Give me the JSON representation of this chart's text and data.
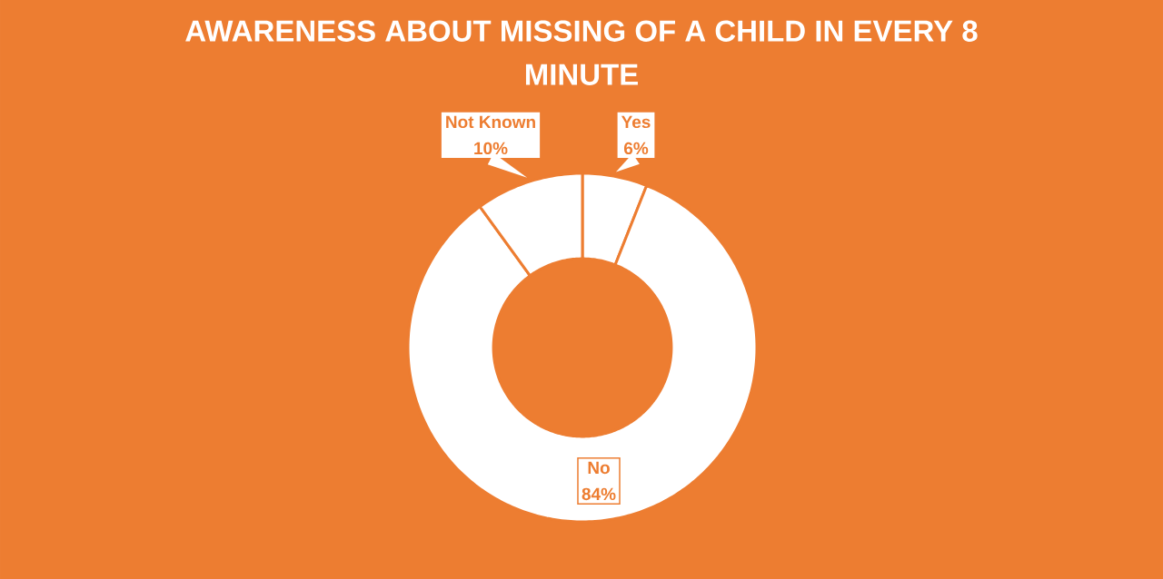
{
  "chart_data": {
    "type": "donut",
    "title": "AWARENESS ABOUT MISSING OF A CHILD IN EVERY 8 MINUTE",
    "categories": [
      "Yes",
      "No",
      "Not Known"
    ],
    "values": [
      6,
      84,
      10
    ],
    "value_labels": [
      "6%",
      "84%",
      "10%"
    ],
    "colors": [
      "#ffffff",
      "#ffffff",
      "#ffffff"
    ]
  }
}
